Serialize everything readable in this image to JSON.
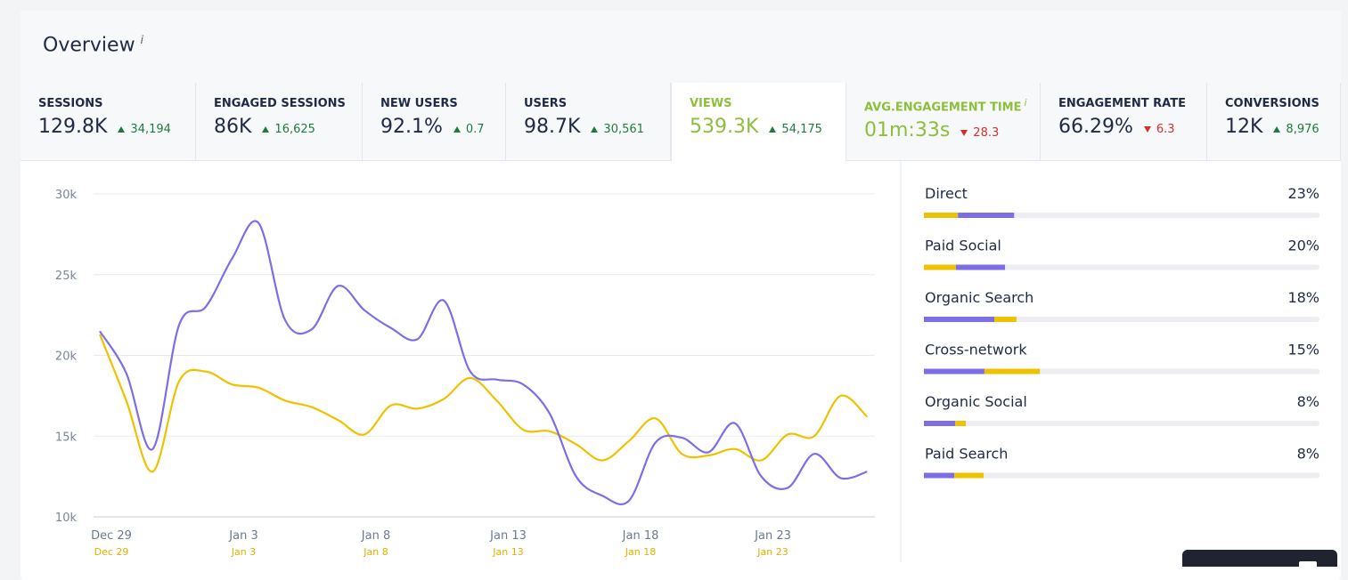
{
  "header": {
    "title": "Overview",
    "info": "i"
  },
  "metrics": [
    {
      "label": "SESSIONS",
      "value": "129.8K",
      "delta": "34,194",
      "direction": "up"
    },
    {
      "label": "ENGAGED SESSIONS",
      "value": "86K",
      "delta": "16,625",
      "direction": "up"
    },
    {
      "label": "NEW USERS",
      "value": "92.1%",
      "delta": "0.7",
      "direction": "up"
    },
    {
      "label": "USERS",
      "value": "98.7K",
      "delta": "30,561",
      "direction": "up"
    },
    {
      "label": "VIEWS",
      "value": "539.3K",
      "delta": "54,175",
      "direction": "up",
      "color": "#8dbf3c",
      "active": true
    },
    {
      "label": "AVG.ENGAGEMENT TIME",
      "info": "i",
      "value": "01m:33s",
      "delta": "28.3",
      "direction": "down",
      "color": "#8dbf3c"
    },
    {
      "label": "ENGAGEMENT RATE",
      "value": "66.29%",
      "delta": "6.3",
      "direction": "down"
    },
    {
      "label": "CONVERSIONS",
      "value": "12K",
      "delta": "8,976",
      "direction": "up"
    }
  ],
  "chart_data": {
    "type": "line",
    "categories": [
      "Dec 29",
      null,
      null,
      null,
      null,
      "Jan 3",
      null,
      null,
      null,
      null,
      "Jan 8",
      null,
      null,
      null,
      null,
      "Jan 13",
      null,
      null,
      null,
      null,
      "Jan 18",
      null,
      null,
      null,
      null,
      "Jan 23",
      null,
      null,
      null,
      null
    ],
    "compare_categories": [
      "Dec 29",
      null,
      null,
      null,
      null,
      "Jan 3",
      null,
      null,
      null,
      null,
      "Jan 8",
      null,
      null,
      null,
      null,
      "Jan 13",
      null,
      null,
      null,
      null,
      "Jan 18",
      null,
      null,
      null,
      null,
      "Jan 23",
      null,
      null,
      null,
      null
    ],
    "series": [
      {
        "color": "#7b6ee6",
        "values": [
          21500,
          18900,
          14200,
          21900,
          23000,
          26000,
          28200,
          22200,
          21600,
          24300,
          22800,
          21700,
          21000,
          23400,
          19000,
          18500,
          18200,
          16400,
          12500,
          11300,
          11000,
          14600,
          14900,
          14000,
          15800,
          12500,
          11800,
          13900,
          12400,
          12800
        ]
      },
      {
        "color": "#eec200",
        "values": [
          21300,
          17200,
          12800,
          18400,
          19000,
          18200,
          18000,
          17200,
          16800,
          16000,
          15100,
          16900,
          16700,
          17300,
          18600,
          17200,
          15400,
          15300,
          14500,
          13500,
          14700,
          16100,
          13900,
          13800,
          14200,
          13500,
          15100,
          15000,
          17500,
          16200
        ]
      }
    ],
    "ylim": [
      10000,
      30000
    ],
    "yticks": [
      {
        "value": 10000,
        "label": "10k"
      },
      {
        "value": 15000,
        "label": "15k"
      },
      {
        "value": 20000,
        "label": "20k"
      },
      {
        "value": 25000,
        "label": "25k"
      },
      {
        "value": 30000,
        "label": "30k"
      }
    ],
    "grid": true
  },
  "channels": {
    "xlim": [
      0,
      100
    ],
    "items": [
      {
        "name": "Direct",
        "label": "23%",
        "segments": [
          {
            "color": "#eec200",
            "value": 8.6
          },
          {
            "color": "#7b6ee6",
            "value": 14.2
          }
        ]
      },
      {
        "name": "Paid Social",
        "label": "20%",
        "segments": [
          {
            "color": "#eec200",
            "value": 8.1
          },
          {
            "color": "#7b6ee6",
            "value": 12.4
          }
        ]
      },
      {
        "name": "Organic Search",
        "label": "18%",
        "segments": [
          {
            "color": "#7b6ee6",
            "value": 17.8
          },
          {
            "color": "#eec200",
            "value": 5.6
          }
        ]
      },
      {
        "name": "Cross-network",
        "label": "15%",
        "segments": [
          {
            "color": "#7b6ee6",
            "value": 15.3
          },
          {
            "color": "#eec200",
            "value": 14.0
          }
        ]
      },
      {
        "name": "Organic Social",
        "label": "8%",
        "segments": [
          {
            "color": "#7b6ee6",
            "value": 7.9
          },
          {
            "color": "#eec200",
            "value": 2.7
          }
        ]
      },
      {
        "name": "Paid Search",
        "label": "8%",
        "segments": [
          {
            "color": "#7b6ee6",
            "value": 7.7
          },
          {
            "color": "#eec200",
            "value": 7.4
          }
        ]
      }
    ]
  }
}
